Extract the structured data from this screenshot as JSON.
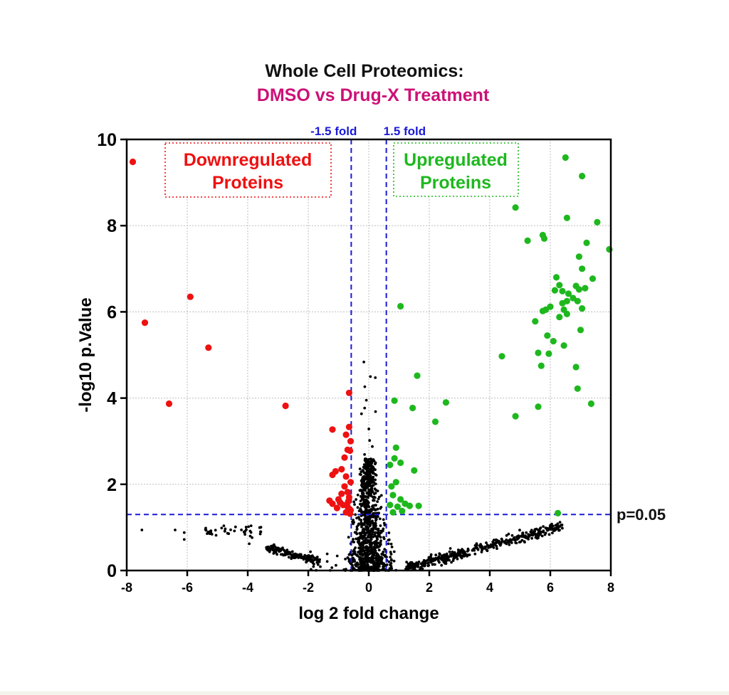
{
  "title_line1": "Whole  Cell Proteomics:",
  "title_line2": "DMSO vs Drug-X Treatment",
  "colors": {
    "title1": "#111111",
    "title2": "#cc1177",
    "down": "#ee1111",
    "up": "#1eb81e",
    "ns": "#000000",
    "threshold": "#1a1ad6",
    "grid": "#bdbdbd"
  },
  "chart_data": {
    "type": "scatter",
    "title": "Whole  Cell Proteomics: DMSO vs Drug-X Treatment",
    "xlabel": "log 2 fold change",
    "ylabel": "-log10 p.Value",
    "xlim": [
      -8,
      8
    ],
    "ylim": [
      0,
      10
    ],
    "xticks": [
      "-8",
      "-6",
      "-4",
      "-2",
      "0",
      "2",
      "4",
      "6",
      "8"
    ],
    "yticks": [
      "0",
      "2",
      "4",
      "6",
      "8",
      "10"
    ],
    "grid": true,
    "thresholds": {
      "fold_left_x": -0.58,
      "fold_right_x": 0.58,
      "pvalue_y": 1.3,
      "fold_left_label": "-1.5 fold",
      "fold_right_label": "1.5 fold",
      "pvalue_label": "p=0.05"
    },
    "annotations": {
      "down_label": [
        "Downregulated",
        "Proteins"
      ],
      "up_label": [
        "Upregulated",
        "Proteins"
      ]
    },
    "series": [
      {
        "name": "Downregulated Proteins",
        "color": "#ee1111",
        "points": [
          [
            -7.8,
            9.48
          ],
          [
            -7.4,
            5.75
          ],
          [
            -5.9,
            6.35
          ],
          [
            -6.6,
            3.87
          ],
          [
            -5.3,
            5.17
          ],
          [
            -2.75,
            3.82
          ],
          [
            -0.65,
            4.12
          ],
          [
            -1.2,
            3.27
          ],
          [
            -0.75,
            3.15
          ],
          [
            -0.65,
            3.33
          ],
          [
            -0.6,
            3.0
          ],
          [
            -0.7,
            2.8
          ],
          [
            -0.62,
            2.78
          ],
          [
            -0.8,
            2.62
          ],
          [
            -1.1,
            2.3
          ],
          [
            -1.2,
            2.22
          ],
          [
            -0.9,
            2.35
          ],
          [
            -0.75,
            2.18
          ],
          [
            -0.6,
            2.05
          ],
          [
            -0.8,
            1.95
          ],
          [
            -0.7,
            1.82
          ],
          [
            -0.65,
            1.7
          ],
          [
            -0.9,
            1.78
          ],
          [
            -1.0,
            1.65
          ],
          [
            -1.2,
            1.55
          ],
          [
            -1.3,
            1.62
          ],
          [
            -0.85,
            1.52
          ],
          [
            -0.7,
            1.48
          ],
          [
            -0.6,
            1.4
          ],
          [
            -1.05,
            1.45
          ],
          [
            -0.75,
            1.35
          ],
          [
            -0.62,
            1.32
          ],
          [
            -0.95,
            1.58
          ],
          [
            -0.68,
            1.6
          ]
        ]
      },
      {
        "name": "Upregulated Proteins",
        "color": "#1eb81e",
        "points": [
          [
            6.5,
            9.58
          ],
          [
            7.05,
            9.15
          ],
          [
            4.85,
            8.42
          ],
          [
            6.55,
            8.18
          ],
          [
            7.55,
            8.08
          ],
          [
            5.25,
            7.65
          ],
          [
            5.75,
            7.78
          ],
          [
            5.8,
            7.7
          ],
          [
            7.95,
            7.45
          ],
          [
            7.2,
            7.6
          ],
          [
            6.95,
            7.28
          ],
          [
            7.05,
            7.0
          ],
          [
            6.2,
            6.8
          ],
          [
            6.3,
            6.62
          ],
          [
            6.15,
            6.5
          ],
          [
            6.6,
            6.42
          ],
          [
            6.4,
            6.48
          ],
          [
            6.85,
            6.6
          ],
          [
            6.95,
            6.52
          ],
          [
            7.15,
            6.55
          ],
          [
            7.4,
            6.77
          ],
          [
            6.0,
            6.12
          ],
          [
            5.85,
            6.05
          ],
          [
            5.75,
            6.02
          ],
          [
            6.4,
            6.2
          ],
          [
            6.55,
            6.25
          ],
          [
            6.75,
            6.32
          ],
          [
            6.9,
            6.25
          ],
          [
            7.05,
            6.08
          ],
          [
            6.45,
            6.05
          ],
          [
            6.55,
            5.95
          ],
          [
            6.3,
            5.88
          ],
          [
            5.5,
            5.78
          ],
          [
            5.9,
            5.45
          ],
          [
            6.1,
            5.32
          ],
          [
            6.45,
            5.22
          ],
          [
            7.0,
            5.58
          ],
          [
            5.6,
            5.05
          ],
          [
            5.95,
            5.03
          ],
          [
            6.85,
            4.72
          ],
          [
            6.9,
            4.22
          ],
          [
            4.4,
            4.97
          ],
          [
            5.7,
            4.75
          ],
          [
            7.35,
            3.87
          ],
          [
            5.6,
            3.8
          ],
          [
            4.85,
            3.58
          ],
          [
            1.05,
            6.13
          ],
          [
            1.6,
            4.52
          ],
          [
            0.85,
            3.94
          ],
          [
            1.45,
            3.77
          ],
          [
            2.55,
            3.9
          ],
          [
            2.2,
            3.45
          ],
          [
            0.9,
            2.85
          ],
          [
            0.85,
            2.6
          ],
          [
            0.7,
            2.45
          ],
          [
            1.05,
            2.5
          ],
          [
            1.5,
            2.32
          ],
          [
            0.9,
            2.05
          ],
          [
            0.75,
            1.95
          ],
          [
            0.8,
            1.75
          ],
          [
            1.05,
            1.65
          ],
          [
            1.2,
            1.55
          ],
          [
            0.7,
            1.52
          ],
          [
            0.95,
            1.48
          ],
          [
            1.35,
            1.5
          ],
          [
            1.65,
            1.5
          ],
          [
            1.1,
            1.38
          ],
          [
            0.8,
            1.35
          ],
          [
            6.25,
            1.33
          ]
        ]
      }
    ],
    "non_significant_note": "dense black points of non-significant proteins clustered near x = 0 and along low -log10 p values"
  }
}
